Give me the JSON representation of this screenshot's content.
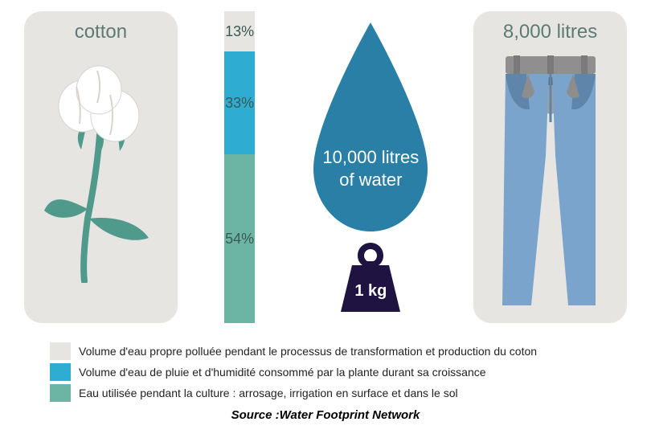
{
  "colors": {
    "panel_bg": "#e7e5e2",
    "title_text": "#5d7a75",
    "bar_seg1": "#e7e5e2",
    "bar_seg2": "#2eacd1",
    "bar_seg3": "#6cb5a4",
    "seg_label": "#3b5953",
    "drop_fill": "#2a7fa7",
    "drop_text": "#ffffff",
    "weight_fill": "#1f1342",
    "jeans_fill": "#7ba4cc",
    "jeans_dark": "#6a6a6a",
    "cotton_stem": "#4f9a8b",
    "cotton_flower": "#ffffff",
    "cotton_flower_shadow": "#e3e1dc",
    "legend_text": "#222222"
  },
  "cotton": {
    "title": "cotton"
  },
  "bar": {
    "segments": [
      {
        "label": "13%",
        "height_pct": 13,
        "color_key": "bar_seg1"
      },
      {
        "label": "33%",
        "height_pct": 33,
        "color_key": "bar_seg2"
      },
      {
        "label": "54%",
        "height_pct": 54,
        "color_key": "bar_seg3"
      }
    ]
  },
  "drop": {
    "line1": "10,000 litres",
    "line2": "of water"
  },
  "weight": {
    "label": "1 kg"
  },
  "jeans": {
    "title": "8,000 litres"
  },
  "legend": {
    "items": [
      {
        "color_key": "bar_seg1",
        "text": "Volume d'eau propre polluée pendant le processus de transformation et production du coton"
      },
      {
        "color_key": "bar_seg2",
        "text": "Volume d'eau de pluie et d'humidité consommé par la plante durant sa croissance"
      },
      {
        "color_key": "bar_seg3",
        "text": "Eau utilisée pendant la culture : arrosage, irrigation en surface et dans le sol"
      }
    ]
  },
  "source": "Source :Water Footprint Network"
}
